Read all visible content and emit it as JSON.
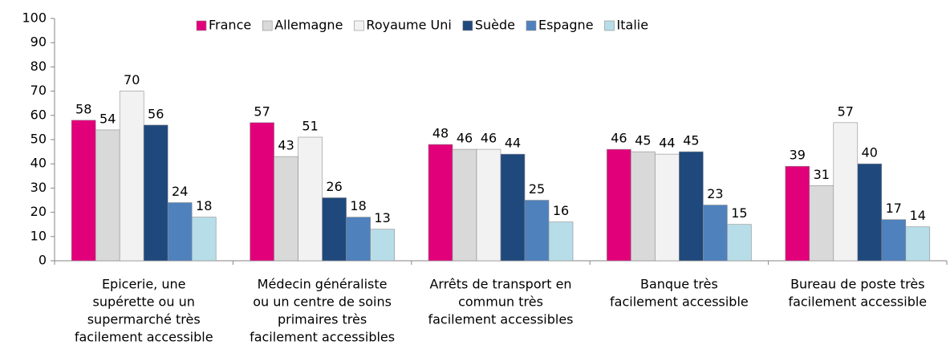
{
  "chart_data": {
    "type": "bar",
    "categories": [
      [
        "Epicerie, une",
        "supérette ou un",
        "supermarché très",
        "facilement accessible"
      ],
      [
        "Médecin généraliste",
        "ou un centre de soins",
        "primaires très",
        "facilement accessibles"
      ],
      [
        "Arrêts de transport en",
        "commun très",
        "facilement accessibles"
      ],
      [
        "Banque très",
        "facilement accessible"
      ],
      [
        "Bureau de poste très",
        "facilement accessible"
      ]
    ],
    "series": [
      {
        "name": "France",
        "color": "#e2007a",
        "values": [
          58,
          57,
          48,
          46,
          39
        ]
      },
      {
        "name": "Allemagne",
        "color": "#d9d9d9",
        "values": [
          54,
          43,
          46,
          45,
          31
        ]
      },
      {
        "name": "Royaume Uni",
        "color": "#f2f2f2",
        "values": [
          70,
          51,
          46,
          44,
          57
        ]
      },
      {
        "name": "Suède",
        "color": "#1f497d",
        "values": [
          56,
          26,
          44,
          45,
          40
        ]
      },
      {
        "name": "Espagne",
        "color": "#4f81bd",
        "values": [
          24,
          18,
          25,
          23,
          17
        ]
      },
      {
        "name": "Italie",
        "color": "#b7dde8",
        "values": [
          18,
          13,
          16,
          15,
          14
        ]
      }
    ],
    "ylim": [
      0,
      100
    ],
    "yticks": [
      0,
      10,
      20,
      30,
      40,
      50,
      60,
      70,
      80,
      90,
      100
    ],
    "legend": "top",
    "grid": false
  }
}
